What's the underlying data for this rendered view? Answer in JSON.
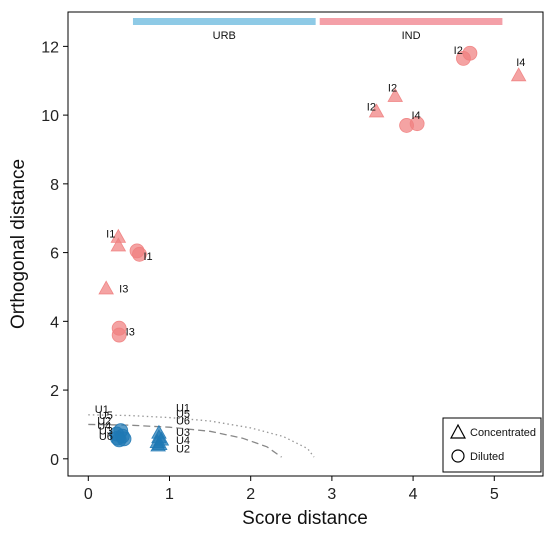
{
  "chart_data": {
    "type": "scatter",
    "xlabel": "Score distance",
    "ylabel": "Orthogonal distance",
    "xlim": [
      -0.25,
      5.6
    ],
    "ylim": [
      -0.5,
      13.0
    ],
    "xticks": [
      0,
      1,
      2,
      3,
      4,
      5
    ],
    "yticks": [
      0,
      2,
      4,
      6,
      8,
      10,
      12
    ],
    "grid": false,
    "colors": {
      "IND": "#f08080",
      "URB": "#1f78b4",
      "urb_band": "#8ecae6",
      "ind_band": "#f4a0a8"
    },
    "bands": [
      {
        "label": "URB",
        "x_start": 0.55,
        "x_end": 2.8
      },
      {
        "label": "IND",
        "x_start": 2.85,
        "x_end": 5.1
      }
    ],
    "cutoffs": [
      {
        "style": "dotted",
        "x": [
          0,
          0.5,
          1.0,
          1.5,
          2.0,
          2.4,
          2.7,
          2.78
        ],
        "y": [
          1.28,
          1.26,
          1.2,
          1.1,
          0.9,
          0.65,
          0.3,
          0.05
        ]
      },
      {
        "style": "dashed",
        "x": [
          0,
          0.5,
          1.0,
          1.5,
          1.9,
          2.2,
          2.38
        ],
        "y": [
          1.0,
          0.98,
          0.92,
          0.8,
          0.6,
          0.35,
          0.05
        ]
      }
    ],
    "series": [
      {
        "name": "Concentrated",
        "marker": "triangle",
        "points": [
          {
            "x": 0.37,
            "y": 6.45,
            "group": "IND"
          },
          {
            "x": 0.37,
            "y": 6.2,
            "group": "IND"
          },
          {
            "x": 0.22,
            "y": 4.95,
            "group": "IND"
          },
          {
            "x": 3.55,
            "y": 10.1,
            "group": "IND"
          },
          {
            "x": 3.78,
            "y": 10.55,
            "group": "IND"
          },
          {
            "x": 5.3,
            "y": 11.15,
            "group": "IND"
          },
          {
            "x": 0.87,
            "y": 0.75,
            "group": "URB"
          },
          {
            "x": 0.87,
            "y": 0.62,
            "group": "URB"
          },
          {
            "x": 0.9,
            "y": 0.55,
            "group": "URB"
          },
          {
            "x": 0.85,
            "y": 0.48,
            "group": "URB"
          },
          {
            "x": 0.88,
            "y": 0.42,
            "group": "URB"
          },
          {
            "x": 0.86,
            "y": 0.38,
            "group": "URB"
          }
        ]
      },
      {
        "name": "Diluted",
        "marker": "circle",
        "points": [
          {
            "x": 0.6,
            "y": 6.05,
            "group": "IND"
          },
          {
            "x": 0.63,
            "y": 5.95,
            "group": "IND"
          },
          {
            "x": 0.38,
            "y": 3.8,
            "group": "IND"
          },
          {
            "x": 0.38,
            "y": 3.6,
            "group": "IND"
          },
          {
            "x": 3.92,
            "y": 9.7,
            "group": "IND"
          },
          {
            "x": 4.05,
            "y": 9.75,
            "group": "IND"
          },
          {
            "x": 4.62,
            "y": 11.65,
            "group": "IND"
          },
          {
            "x": 4.7,
            "y": 11.8,
            "group": "IND"
          },
          {
            "x": 0.4,
            "y": 0.82,
            "group": "URB"
          },
          {
            "x": 0.35,
            "y": 0.72,
            "group": "URB"
          },
          {
            "x": 0.42,
            "y": 0.66,
            "group": "URB"
          },
          {
            "x": 0.36,
            "y": 0.6,
            "group": "URB"
          },
          {
            "x": 0.44,
            "y": 0.58,
            "group": "URB"
          },
          {
            "x": 0.38,
            "y": 0.55,
            "group": "URB"
          }
        ]
      }
    ],
    "annotations": [
      {
        "text": "I1",
        "x": 0.22,
        "y": 6.55
      },
      {
        "text": "I1",
        "x": 0.68,
        "y": 5.9
      },
      {
        "text": "I3",
        "x": 0.38,
        "y": 4.95
      },
      {
        "text": "I3",
        "x": 0.46,
        "y": 3.7
      },
      {
        "text": "I2",
        "x": 3.43,
        "y": 10.25
      },
      {
        "text": "I2",
        "x": 3.69,
        "y": 10.8
      },
      {
        "text": "I2",
        "x": 4.5,
        "y": 11.9
      },
      {
        "text": "I4",
        "x": 3.98,
        "y": 10.0
      },
      {
        "text": "I4",
        "x": 5.27,
        "y": 11.55
      },
      {
        "text": "U1",
        "x": 0.08,
        "y": 1.45
      },
      {
        "text": "U5",
        "x": 0.13,
        "y": 1.28
      },
      {
        "text": "U2",
        "x": 0.11,
        "y": 1.12
      },
      {
        "text": "U4",
        "x": 0.11,
        "y": 0.97
      },
      {
        "text": "U3",
        "x": 0.13,
        "y": 0.82
      },
      {
        "text": "U6",
        "x": 0.13,
        "y": 0.66
      },
      {
        "text": "U1",
        "x": 1.08,
        "y": 1.5
      },
      {
        "text": "U5",
        "x": 1.08,
        "y": 1.32
      },
      {
        "text": "U6",
        "x": 1.08,
        "y": 1.12
      },
      {
        "text": "U3",
        "x": 1.08,
        "y": 0.78
      },
      {
        "text": "U4",
        "x": 1.08,
        "y": 0.55
      },
      {
        "text": "U2",
        "x": 1.08,
        "y": 0.3
      }
    ],
    "legend": {
      "position": "bottom-right",
      "entries": [
        {
          "label": "Concentrated",
          "marker": "triangle"
        },
        {
          "label": "Diluted",
          "marker": "circle"
        }
      ]
    }
  }
}
